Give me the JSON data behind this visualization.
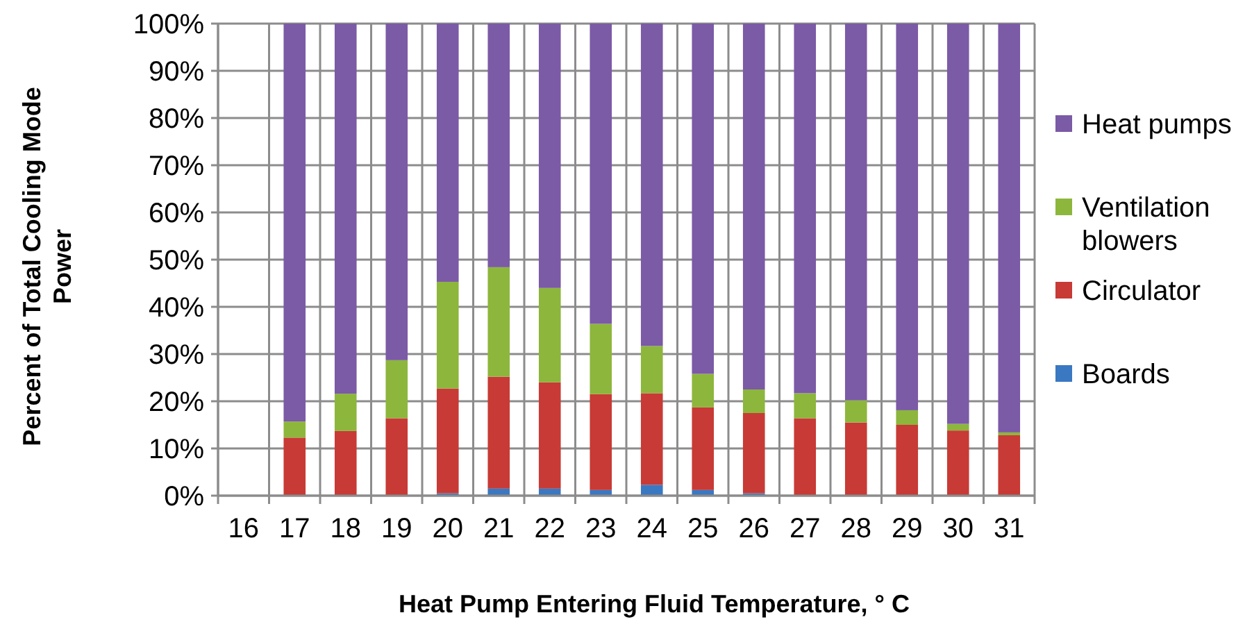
{
  "chart_data": {
    "type": "bar",
    "stacked": true,
    "xlabel": "Heat Pump Entering Fluid Temperature, ° C",
    "ylabel": "Percent of Total Cooling Mode Power",
    "categories": [
      "16",
      "17",
      "18",
      "19",
      "20",
      "21",
      "22",
      "23",
      "24",
      "25",
      "26",
      "27",
      "28",
      "29",
      "30",
      "31"
    ],
    "series": [
      {
        "name": "Boards",
        "color": "#3a78c2",
        "values": [
          null,
          0,
          0,
          0,
          0.5,
          1.5,
          1.5,
          1.2,
          2.3,
          1.2,
          0.5,
          0,
          0,
          0,
          0,
          0
        ]
      },
      {
        "name": "Circulator",
        "color": "#c83a35",
        "values": [
          null,
          12.3,
          13.7,
          16.4,
          22.2,
          23.7,
          22.5,
          20.3,
          19.4,
          17.5,
          17.0,
          16.4,
          15.5,
          15.0,
          13.8,
          12.8
        ]
      },
      {
        "name": "Ventilation blowers",
        "color": "#8db63c",
        "values": [
          null,
          3.4,
          7.9,
          12.3,
          22.6,
          23.2,
          20.0,
          14.9,
          10.0,
          7.1,
          5.0,
          5.3,
          4.7,
          3.1,
          1.4,
          0.6
        ]
      },
      {
        "name": "Heat pumps",
        "color": "#7b5aa6",
        "values": [
          null,
          84.3,
          78.4,
          71.3,
          54.7,
          51.6,
          56.0,
          63.6,
          68.3,
          74.2,
          77.5,
          78.3,
          79.8,
          81.9,
          84.8,
          86.6
        ]
      }
    ],
    "ylim": [
      0,
      100
    ],
    "yticks": [
      {
        "value": 0,
        "label": "0%"
      },
      {
        "value": 10,
        "label": "10%"
      },
      {
        "value": 20,
        "label": "20%"
      },
      {
        "value": 30,
        "label": "30%"
      },
      {
        "value": 40,
        "label": "40%"
      },
      {
        "value": 50,
        "label": "50%"
      },
      {
        "value": 60,
        "label": "60%"
      },
      {
        "value": 70,
        "label": "70%"
      },
      {
        "value": 80,
        "label": "80%"
      },
      {
        "value": 90,
        "label": "90%"
      },
      {
        "value": 100,
        "label": "100%"
      }
    ],
    "grid": true,
    "legend": "right"
  }
}
